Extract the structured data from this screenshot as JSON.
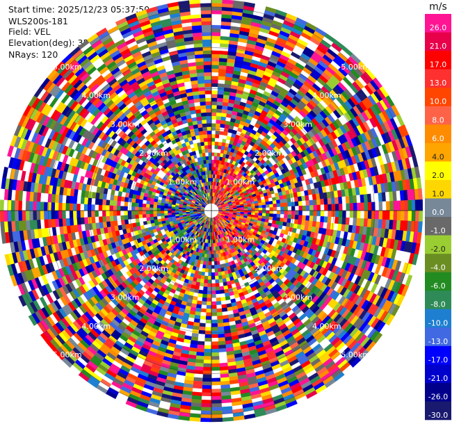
{
  "info": {
    "start_time": "Start time: 2025/12/23 05:37:50",
    "instrument": "WLS200s-181",
    "field": "Field: VEL",
    "elevation": "Elevation(deg): 35.00",
    "nrays": "NRays: 120"
  },
  "chart_data": {
    "type": "polar-ppi",
    "field": "VEL",
    "nrays": 120,
    "unit": "m/s",
    "range_rings_km": [
      1,
      2,
      3,
      4,
      5
    ],
    "range_labels": [
      {
        "ring": 1,
        "text": "1.00km",
        "azimuth": 315
      },
      {
        "ring": 1,
        "text": "1.00km",
        "azimuth": 45
      },
      {
        "ring": 1,
        "text": "1.00km",
        "azimuth": 225
      },
      {
        "ring": 1,
        "text": "1.00km",
        "azimuth": 135
      },
      {
        "ring": 2,
        "text": "2.00km",
        "azimuth": 315
      },
      {
        "ring": 2,
        "text": "2.00km",
        "azimuth": 45
      },
      {
        "ring": 2,
        "text": "2.00km",
        "azimuth": 225
      },
      {
        "ring": 2,
        "text": "2.00km",
        "azimuth": 135
      },
      {
        "ring": 3,
        "text": "3.00km",
        "azimuth": 315
      },
      {
        "ring": 3,
        "text": "3.00km",
        "azimuth": 45
      },
      {
        "ring": 3,
        "text": "3.00km",
        "azimuth": 225
      },
      {
        "ring": 3,
        "text": "3.00km",
        "azimuth": 135
      },
      {
        "ring": 4,
        "text": "4.00km",
        "azimuth": 315
      },
      {
        "ring": 4,
        "text": "4.00km",
        "azimuth": 45
      },
      {
        "ring": 4,
        "text": "4.00km",
        "azimuth": 225
      },
      {
        "ring": 4,
        "text": "4.00km",
        "azimuth": 135
      },
      {
        "ring": 5,
        "text": "5.00km",
        "azimuth": 315
      },
      {
        "ring": 5,
        "text": "5.00km",
        "azimuth": 45
      },
      {
        "ring": 5,
        "text": "5.00km",
        "azimuth": 225
      },
      {
        "ring": 5,
        "text": "5.00km",
        "azimuth": 135
      }
    ],
    "colorbar": {
      "unit": "m/s",
      "bins": [
        {
          "label": "26.0",
          "color": "#ff1493"
        },
        {
          "label": "21.0",
          "color": "#e8004b"
        },
        {
          "label": "17.0",
          "color": "#ff0000"
        },
        {
          "label": "13.0",
          "color": "#ff3030"
        },
        {
          "label": "10.0",
          "color": "#ff4500"
        },
        {
          "label": "8.0",
          "color": "#ff6347"
        },
        {
          "label": "6.0",
          "color": "#ff8c00"
        },
        {
          "label": "4.0",
          "color": "#ffa500"
        },
        {
          "label": "2.0",
          "color": "#ffff00"
        },
        {
          "label": "1.0",
          "color": "#ffd700"
        },
        {
          "label": "0.0",
          "color": "#778899"
        },
        {
          "label": "-1.0",
          "color": "#696969"
        },
        {
          "label": "-2.0",
          "color": "#9acd32"
        },
        {
          "label": "-4.0",
          "color": "#6b8e23"
        },
        {
          "label": "-6.0",
          "color": "#228b22"
        },
        {
          "label": "-8.0",
          "color": "#2e8b57"
        },
        {
          "label": "-10.0",
          "color": "#1e7fd0"
        },
        {
          "label": "-13.0",
          "color": "#4169e1"
        },
        {
          "label": "-17.0",
          "color": "#0000ff"
        },
        {
          "label": "-21.0",
          "color": "#0000cd"
        },
        {
          "label": "-26.0",
          "color": "#00008b"
        },
        {
          "label": "-30.0",
          "color": "#191970"
        }
      ]
    }
  }
}
